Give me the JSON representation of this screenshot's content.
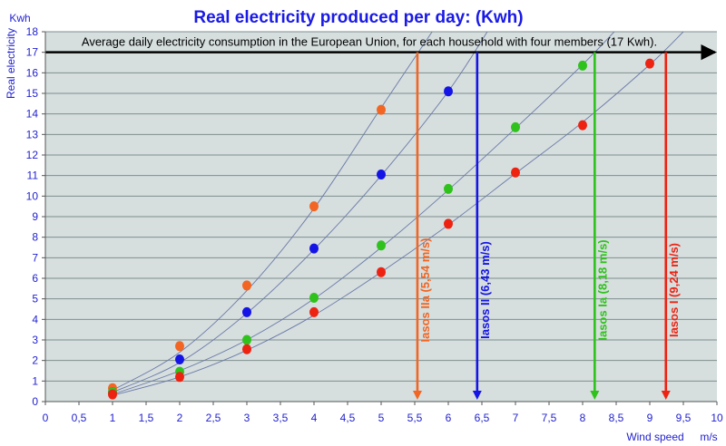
{
  "chart_data": {
    "type": "scatter",
    "title": "Real electricity produced per day: (Kwh)",
    "ylabel": "Real electricity",
    "yunit": "Kwh",
    "xlabel": "Wind speed",
    "xunit": "m/s",
    "xlim": [
      0,
      10
    ],
    "ylim": [
      0,
      18
    ],
    "x_ticks": [
      "0",
      "0,5",
      "1",
      "1,5",
      "2",
      "2,5",
      "3",
      "3,5",
      "4",
      "4,5",
      "5",
      "5,5",
      "6",
      "6,5",
      "7",
      "7,5",
      "8",
      "8,5",
      "9",
      "9,5",
      "10"
    ],
    "y_ticks": [
      "0",
      "1",
      "2",
      "3",
      "4",
      "5",
      "6",
      "7",
      "8",
      "9",
      "10",
      "11",
      "12",
      "13",
      "14",
      "15",
      "16",
      "17",
      "18"
    ],
    "grid": true,
    "reference_line": {
      "y": 17,
      "label": "Average daily electricity consumption in the European Union, for each household with four members (17 Kwh)."
    },
    "series": [
      {
        "name": "Iasos IIa",
        "color": "#f26522",
        "points": [
          [
            1,
            0.65
          ],
          [
            2,
            2.7
          ],
          [
            3,
            5.65
          ],
          [
            4,
            9.5
          ],
          [
            5,
            14.2
          ]
        ],
        "curve": [
          [
            1,
            0.55
          ],
          [
            2,
            2.4
          ],
          [
            3,
            5.4
          ],
          [
            4,
            9.4
          ],
          [
            5,
            14.3
          ],
          [
            5.8,
            18.2
          ]
        ],
        "marker": {
          "x": 5.54,
          "label": "Iasos IIa (5,54 m/s)"
        }
      },
      {
        "name": "Iasos II",
        "color": "#1414e6",
        "points": [
          [
            1,
            0.45
          ],
          [
            2,
            2.05
          ],
          [
            3,
            4.35
          ],
          [
            4,
            7.45
          ],
          [
            5,
            11.05
          ],
          [
            6,
            15.1
          ]
        ],
        "curve": [
          [
            1,
            0.45
          ],
          [
            2,
            1.9
          ],
          [
            3,
            4.3
          ],
          [
            4,
            7.4
          ],
          [
            5,
            11.0
          ],
          [
            6,
            15.1
          ],
          [
            6.6,
            18.1
          ]
        ],
        "marker": {
          "x": 6.43,
          "label": "Iasos II (6,43 m/s)"
        }
      },
      {
        "name": "Iasos Ia",
        "color": "#2fc21c",
        "points": [
          [
            1,
            0.45
          ],
          [
            2,
            1.45
          ],
          [
            3,
            3.0
          ],
          [
            4,
            5.05
          ],
          [
            5,
            7.6
          ],
          [
            6,
            10.35
          ],
          [
            7,
            13.35
          ],
          [
            8,
            16.35
          ]
        ],
        "curve": [
          [
            1,
            0.35
          ],
          [
            2,
            1.5
          ],
          [
            3,
            3.0
          ],
          [
            4,
            5.0
          ],
          [
            5,
            7.5
          ],
          [
            6,
            10.3
          ],
          [
            7,
            13.3
          ],
          [
            8,
            16.4
          ],
          [
            8.5,
            18.1
          ]
        ],
        "marker": {
          "x": 8.18,
          "label": "Iasos Ia (8,18 m/s)"
        }
      },
      {
        "name": "Iasos I",
        "color": "#ee2211",
        "points": [
          [
            1,
            0.35
          ],
          [
            2,
            1.2
          ],
          [
            3,
            2.55
          ],
          [
            4,
            4.35
          ],
          [
            5,
            6.3
          ],
          [
            6,
            8.65
          ],
          [
            7,
            11.15
          ],
          [
            8,
            13.45
          ],
          [
            9,
            16.45
          ]
        ],
        "curve": [
          [
            1,
            0.3
          ],
          [
            2,
            1.2
          ],
          [
            3,
            2.5
          ],
          [
            4,
            4.2
          ],
          [
            5,
            6.3
          ],
          [
            6,
            8.6
          ],
          [
            7,
            11.1
          ],
          [
            8,
            13.6
          ],
          [
            9,
            16.4
          ],
          [
            9.5,
            18.0
          ]
        ],
        "marker": {
          "x": 9.24,
          "label": "Iasos I (9,24 m/s)"
        }
      }
    ]
  }
}
